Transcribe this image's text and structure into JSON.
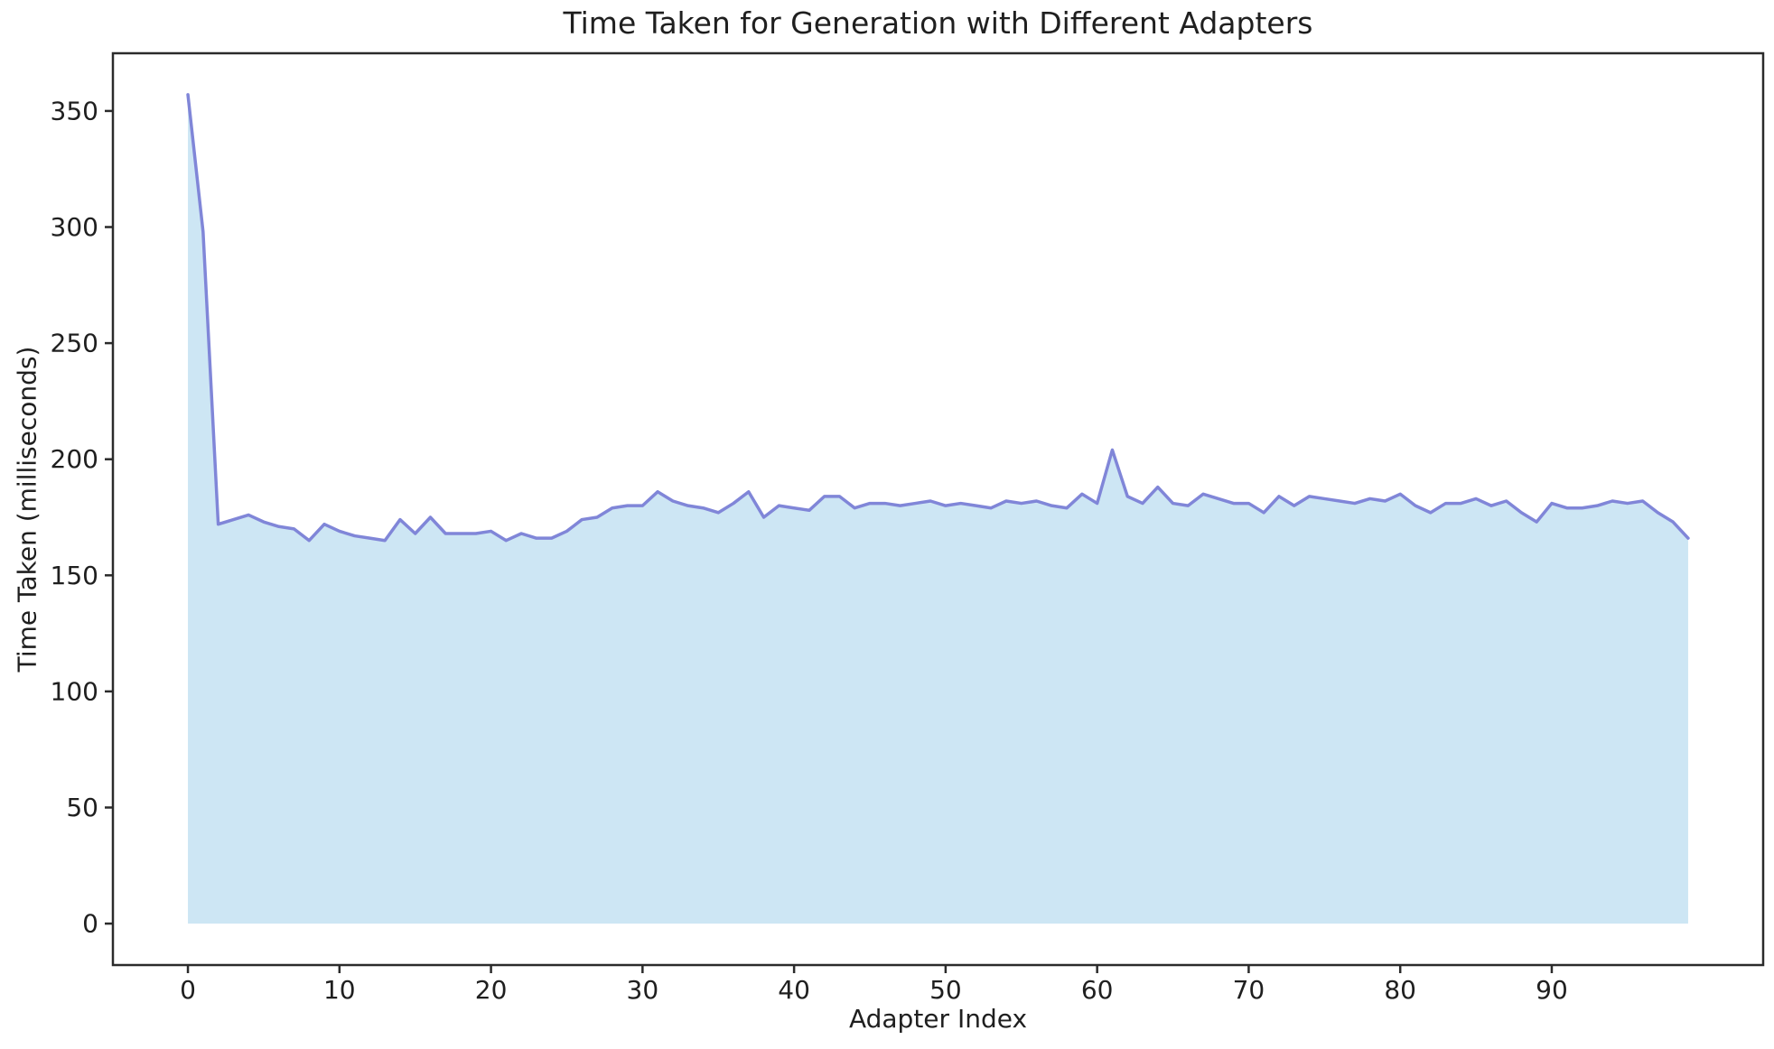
{
  "page": {
    "background_color": "#ffffff"
  },
  "chart_data": {
    "type": "area",
    "title": "Time Taken for Generation with Different Adapters",
    "xlabel": "Adapter Index",
    "ylabel": "Time Taken (milliseconds)",
    "x": [
      0,
      1,
      2,
      3,
      4,
      5,
      6,
      7,
      8,
      9,
      10,
      11,
      12,
      13,
      14,
      15,
      16,
      17,
      18,
      19,
      20,
      21,
      22,
      23,
      24,
      25,
      26,
      27,
      28,
      29,
      30,
      31,
      32,
      33,
      34,
      35,
      36,
      37,
      38,
      39,
      40,
      41,
      42,
      43,
      44,
      45,
      46,
      47,
      48,
      49,
      50,
      51,
      52,
      53,
      54,
      55,
      56,
      57,
      58,
      59,
      60,
      61,
      62,
      63,
      64,
      65,
      66,
      67,
      68,
      69,
      70,
      71,
      72,
      73,
      74,
      75,
      76,
      77,
      78,
      79,
      80,
      81,
      82,
      83,
      84,
      85,
      86,
      87,
      88,
      89,
      90,
      91,
      92,
      93,
      94,
      95,
      96,
      97,
      98,
      99
    ],
    "values": [
      357,
      298,
      172,
      174,
      176,
      173,
      171,
      170,
      165,
      172,
      169,
      167,
      166,
      165,
      174,
      168,
      175,
      168,
      168,
      168,
      169,
      165,
      168,
      166,
      166,
      169,
      174,
      175,
      179,
      180,
      180,
      186,
      182,
      180,
      179,
      177,
      181,
      186,
      175,
      180,
      179,
      178,
      184,
      184,
      179,
      181,
      181,
      180,
      181,
      182,
      180,
      181,
      180,
      179,
      182,
      181,
      182,
      180,
      179,
      185,
      181,
      204,
      184,
      181,
      188,
      181,
      180,
      185,
      183,
      181,
      181,
      177,
      184,
      180,
      184,
      183,
      182,
      181,
      183,
      182,
      185,
      180,
      177,
      181,
      181,
      183,
      180,
      182,
      177,
      173,
      181,
      179,
      179,
      180,
      182,
      181,
      182,
      177,
      173,
      166
    ],
    "x_ticks": [
      0,
      10,
      20,
      30,
      40,
      50,
      60,
      70,
      80,
      90
    ],
    "y_ticks": [
      0,
      50,
      100,
      150,
      200,
      250,
      300,
      350
    ],
    "xlim": [
      -4.95,
      103.95
    ],
    "ylim": [
      -17.85,
      374.85
    ],
    "grid": false,
    "legend": "none",
    "baseline": 0,
    "line_color": "#8086d8",
    "fill_color": "#cde6f4",
    "spine_color": "#2b2b2b",
    "text_color": "#1f1f1f"
  }
}
